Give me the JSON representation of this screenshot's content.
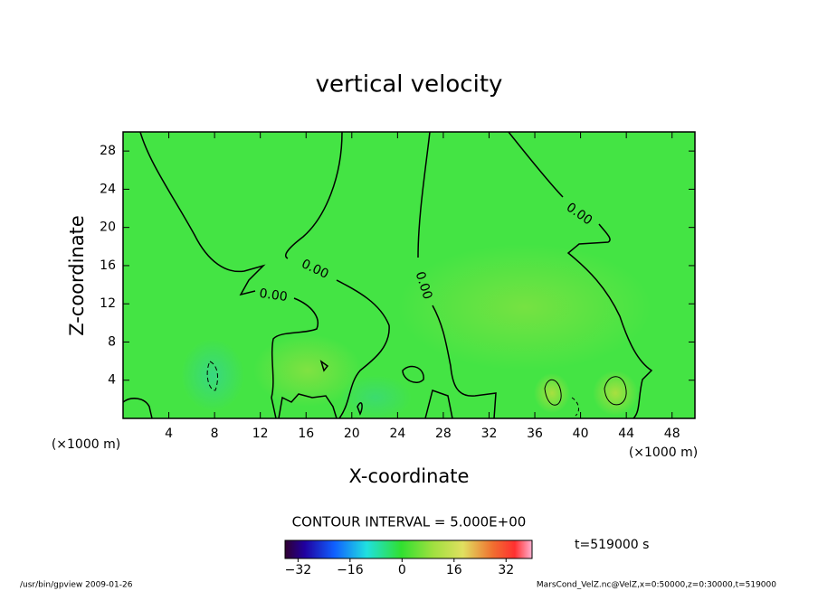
{
  "chart_data": {
    "type": "contour",
    "title": "vertical velocity",
    "xlabel": "X-coordinate",
    "ylabel": "Z-coordinate",
    "xunit": "(×1000 m)",
    "yunit": "(×1000 m)",
    "xlim": [
      0,
      50
    ],
    "ylim": [
      0,
      30
    ],
    "xticks": [
      4,
      8,
      12,
      16,
      20,
      24,
      28,
      32,
      36,
      40,
      44,
      48
    ],
    "yticks": [
      4,
      8,
      12,
      16,
      20,
      24,
      28
    ],
    "contour_labels": [
      {
        "value": 0,
        "label": "0.00"
      },
      {
        "value": 0,
        "label": "0.00"
      },
      {
        "value": 0,
        "label": "0.00"
      },
      {
        "value": 0,
        "label": "0.00"
      }
    ],
    "contour_interval_text": "CONTOUR INTERVAL = 5.000E+00",
    "colorbar": {
      "lim": [
        -36,
        40
      ],
      "ticks": [
        {
          "value": -32,
          "label": "−32"
        },
        {
          "value": -16,
          "label": "−16"
        },
        0,
        16,
        32
      ]
    },
    "time_text": "t=519000 s",
    "footer_left": "/usr/bin/gpview  2009-01-26",
    "footer_right": "MarsCond_VelZ.nc@VelZ,x=0:50000,z=0:30000,t=519000"
  }
}
